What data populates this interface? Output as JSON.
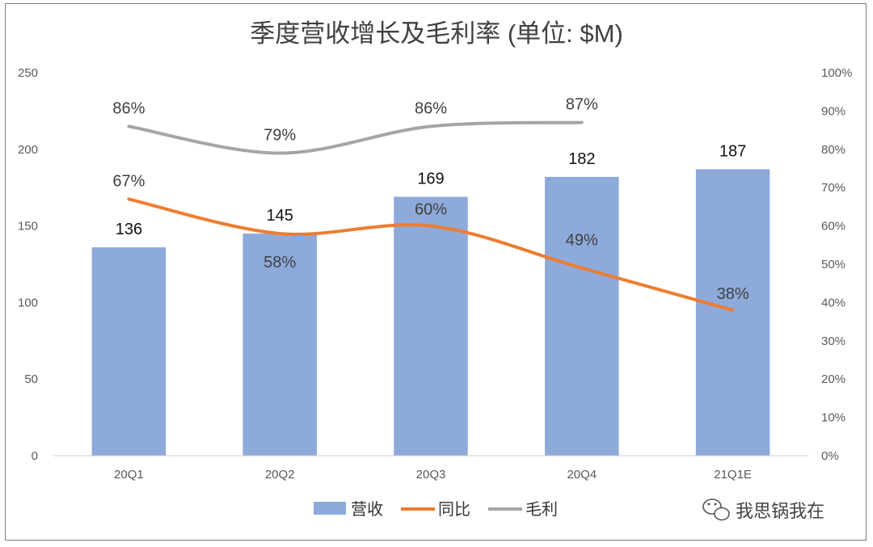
{
  "chart_data": {
    "type": "bar",
    "title": "季度营收增长及毛利率 (单位: $M)",
    "categories": [
      "20Q1",
      "20Q2",
      "20Q3",
      "20Q4",
      "21Q1E"
    ],
    "series": [
      {
        "name": "营收",
        "type": "bar",
        "axis": "left",
        "color": "#8eaadb",
        "values": [
          136,
          145,
          169,
          182,
          187
        ],
        "labels": [
          "136",
          "145",
          "169",
          "182",
          "187"
        ]
      },
      {
        "name": "同比",
        "type": "line",
        "axis": "right",
        "color": "#ed7d31",
        "values": [
          67,
          58,
          60,
          49,
          38
        ],
        "labels": [
          "67%",
          "58%",
          "60%",
          "49%",
          "38%"
        ]
      },
      {
        "name": "毛利",
        "type": "line",
        "axis": "right",
        "color": "#a5a5a5",
        "values": [
          86,
          79,
          86,
          87,
          null
        ],
        "labels": [
          "86%",
          "79%",
          "86%",
          "87%",
          ""
        ]
      }
    ],
    "y_left": {
      "min": 0,
      "max": 250,
      "ticks": [
        "0",
        "50",
        "100",
        "150",
        "200",
        "250"
      ]
    },
    "y_right": {
      "min": 0,
      "max": 100,
      "ticks": [
        "0%",
        "10%",
        "20%",
        "30%",
        "40%",
        "50%",
        "60%",
        "70%",
        "80%",
        "90%",
        "100%"
      ]
    },
    "grid": false,
    "legend": "bottom"
  },
  "watermark": "我思锅我在",
  "watermark_icon": "wechat-icon"
}
